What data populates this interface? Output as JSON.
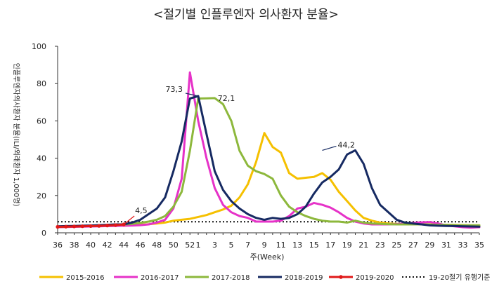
{
  "chart_data": {
    "type": "line",
    "title": "<절기별 인플루엔자 의사환자 분율>",
    "ylabel": "인플루엔자의사환자 분율(ILI/외래환자 1,000명)",
    "xlabel": "주(Week)",
    "ylim": [
      0,
      100
    ],
    "yticks": [
      0,
      20,
      40,
      60,
      80,
      100
    ],
    "grid": false,
    "legend_position": "bottom",
    "week_sequence": [
      36,
      37,
      38,
      39,
      40,
      41,
      42,
      43,
      44,
      45,
      46,
      47,
      48,
      49,
      50,
      51,
      52,
      1,
      2,
      3,
      4,
      5,
      6,
      7,
      8,
      9,
      10,
      11,
      12,
      13,
      14,
      15,
      16,
      17,
      18,
      19,
      20,
      21,
      22,
      23,
      24,
      25,
      26,
      27,
      28,
      29,
      30,
      31,
      32,
      33,
      34,
      35
    ],
    "x_tick_labels": [
      "36",
      "38",
      "40",
      "42",
      "44",
      "46",
      "48",
      "50",
      "52",
      "1",
      "3",
      "5",
      "7",
      "9",
      "11",
      "13",
      "15",
      "17",
      "19",
      "21",
      "23",
      "25",
      "27",
      "29",
      "31",
      "33",
      "35"
    ],
    "series": [
      {
        "name": "2015-2016",
        "color": "#F5C000",
        "dash": "solid",
        "values": [
          3,
          3.2,
          3.3,
          3.4,
          3.5,
          3.6,
          3.7,
          3.8,
          3.8,
          4,
          4.3,
          4.6,
          5,
          5.5,
          6.5,
          7,
          7.5,
          8.5,
          9.5,
          11,
          12.5,
          14.5,
          19,
          26,
          38,
          53.5,
          46,
          43,
          32,
          29,
          29.5,
          30,
          32,
          28.5,
          22,
          17,
          12,
          8,
          6.5,
          5.5,
          5,
          4.8,
          4.7,
          4.6,
          4.5,
          4.5,
          4.4,
          4.3,
          4.2,
          4.1,
          4,
          4
        ]
      },
      {
        "name": "2016-2017",
        "color": "#E632C8",
        "dash": "solid",
        "values": [
          3,
          3.1,
          3.2,
          3.3,
          3.4,
          3.5,
          3.6,
          3.7,
          3.8,
          3.9,
          4.1,
          4.5,
          5.5,
          7,
          13,
          29,
          86,
          60,
          40,
          24,
          15,
          11,
          9,
          8,
          6,
          6,
          6,
          6.5,
          9,
          13,
          14,
          16,
          15,
          13.5,
          11,
          8,
          6,
          5,
          4.5,
          4.5,
          4.5,
          4.7,
          5,
          5.3,
          5.6,
          5.8,
          5,
          4,
          3.5,
          3,
          2.8,
          3
        ]
      },
      {
        "name": "2017-2018",
        "color": "#8DB83C",
        "dash": "solid",
        "values": [
          3.2,
          3.3,
          3.4,
          3.5,
          3.6,
          3.7,
          3.9,
          4.1,
          4.4,
          4.8,
          5.3,
          6,
          7,
          9,
          14,
          22,
          44,
          72,
          72.1,
          72.2,
          69,
          60,
          44,
          36,
          33,
          31.5,
          29,
          20,
          14,
          11,
          9,
          7.5,
          6.5,
          6,
          6,
          5.5,
          6.5,
          5.5,
          5,
          4.8,
          4.6,
          4.5,
          4.5,
          4.5,
          4.5,
          4.4,
          4.3,
          4.2,
          4.1,
          4,
          4,
          4
        ]
      },
      {
        "name": "2018-2019",
        "color": "#162A62",
        "dash": "solid",
        "values": [
          3.5,
          3.6,
          3.7,
          3.8,
          3.9,
          4.1,
          4.3,
          4.5,
          4.5,
          5.5,
          7,
          10,
          13,
          19,
          33,
          49,
          72,
          73.3,
          53,
          33,
          23,
          17,
          13,
          10,
          8,
          7,
          8,
          7.5,
          8,
          10,
          14,
          21,
          27,
          30,
          34,
          42,
          44.2,
          37,
          24,
          15,
          11,
          7,
          5.5,
          5,
          4.5,
          4,
          3.8,
          3.7,
          3.6,
          3.5,
          3.4,
          3.3
        ]
      },
      {
        "name": "2019-2020",
        "color": "#E01818",
        "dash": "solid",
        "values": [
          3.2,
          3.3,
          3.4,
          3.5,
          3.6,
          3.7,
          3.9,
          4.1,
          4.5
        ]
      },
      {
        "name": "19-20절기 유행기준",
        "color": "#111111",
        "dash": "dotted",
        "values": [
          5.9,
          5.9,
          5.9,
          5.9,
          5.9,
          5.9,
          5.9,
          5.9,
          5.9,
          5.9,
          5.9,
          5.9,
          5.9,
          5.9,
          5.9,
          5.9,
          5.9,
          5.9,
          5.9,
          5.9,
          5.9,
          5.9,
          5.9,
          5.9,
          5.9,
          5.9,
          5.9,
          5.9,
          5.9,
          5.9,
          5.9,
          5.9,
          5.9,
          5.9,
          5.9,
          5.9,
          5.9,
          5.9,
          5.9,
          5.9,
          5.9,
          5.9,
          5.9,
          5.9,
          5.9,
          5.9,
          5.9,
          5.9,
          5.9,
          5.9,
          5.9,
          5.9
        ]
      }
    ],
    "annotations": [
      {
        "text": "73,3",
        "series": "2018-2019",
        "week": 1,
        "value": 73.3
      },
      {
        "text": "72,1",
        "series": "2017-2018",
        "week": 2,
        "value": 72.1
      },
      {
        "text": "44,2",
        "series": "2018-2019",
        "week": 16,
        "value": 44.2
      },
      {
        "text": "4,5",
        "series": "2019-2020",
        "week": 44,
        "value": 4.5
      }
    ]
  }
}
